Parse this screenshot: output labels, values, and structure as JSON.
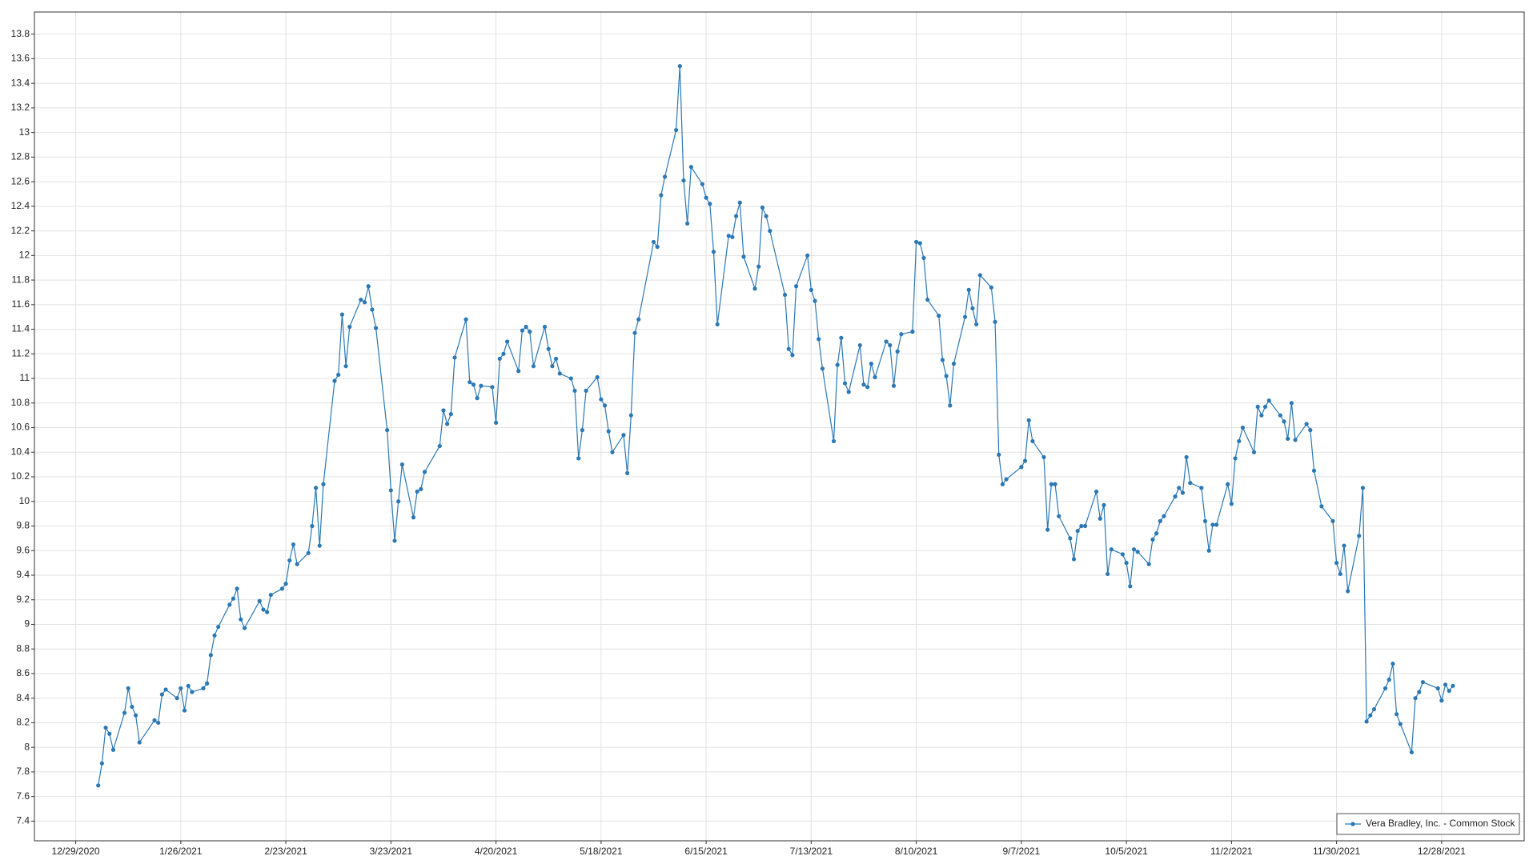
{
  "chart_data": {
    "type": "line",
    "series": [
      {
        "name": "Vera Bradley, Inc. - Common Stock",
        "color": "#2b78b4",
        "x": [
          "1/4/2021",
          "1/5/2021",
          "1/6/2021",
          "1/7/2021",
          "1/8/2021",
          "1/11/2021",
          "1/12/2021",
          "1/13/2021",
          "1/14/2021",
          "1/15/2021",
          "1/19/2021",
          "1/20/2021",
          "1/21/2021",
          "1/22/2021",
          "1/25/2021",
          "1/26/2021",
          "1/27/2021",
          "1/28/2021",
          "1/29/2021",
          "2/1/2021",
          "2/2/2021",
          "2/3/2021",
          "2/4/2021",
          "2/5/2021",
          "2/8/2021",
          "2/9/2021",
          "2/10/2021",
          "2/11/2021",
          "2/12/2021",
          "2/16/2021",
          "2/17/2021",
          "2/18/2021",
          "2/19/2021",
          "2/22/2021",
          "2/23/2021",
          "2/24/2021",
          "2/25/2021",
          "2/26/2021",
          "3/1/2021",
          "3/2/2021",
          "3/3/2021",
          "3/4/2021",
          "3/5/2021",
          "3/8/2021",
          "3/9/2021",
          "3/10/2021",
          "3/11/2021",
          "3/12/2021",
          "3/15/2021",
          "3/16/2021",
          "3/17/2021",
          "3/18/2021",
          "3/19/2021",
          "3/22/2021",
          "3/23/2021",
          "3/24/2021",
          "3/25/2021",
          "3/26/2021",
          "3/29/2021",
          "3/30/2021",
          "3/31/2021",
          "4/1/2021",
          "4/5/2021",
          "4/6/2021",
          "4/7/2021",
          "4/8/2021",
          "4/9/2021",
          "4/12/2021",
          "4/13/2021",
          "4/14/2021",
          "4/15/2021",
          "4/16/2021",
          "4/19/2021",
          "4/20/2021",
          "4/21/2021",
          "4/22/2021",
          "4/23/2021",
          "4/26/2021",
          "4/27/2021",
          "4/28/2021",
          "4/29/2021",
          "4/30/2021",
          "5/3/2021",
          "5/4/2021",
          "5/5/2021",
          "5/6/2021",
          "5/7/2021",
          "5/10/2021",
          "5/11/2021",
          "5/12/2021",
          "5/13/2021",
          "5/14/2021",
          "5/17/2021",
          "5/18/2021",
          "5/19/2021",
          "5/20/2021",
          "5/21/2021",
          "5/24/2021",
          "5/25/2021",
          "5/26/2021",
          "5/27/2021",
          "5/28/2021",
          "6/1/2021",
          "6/2/2021",
          "6/3/2021",
          "6/4/2021",
          "6/7/2021",
          "6/8/2021",
          "6/9/2021",
          "6/10/2021",
          "6/11/2021",
          "6/14/2021",
          "6/15/2021",
          "6/16/2021",
          "6/17/2021",
          "6/18/2021",
          "6/21/2021",
          "6/22/2021",
          "6/23/2021",
          "6/24/2021",
          "6/25/2021",
          "6/28/2021",
          "6/29/2021",
          "6/30/2021",
          "7/1/2021",
          "7/2/2021",
          "7/6/2021",
          "7/7/2021",
          "7/8/2021",
          "7/9/2021",
          "7/12/2021",
          "7/13/2021",
          "7/14/2021",
          "7/15/2021",
          "7/16/2021",
          "7/19/2021",
          "7/20/2021",
          "7/21/2021",
          "7/22/2021",
          "7/23/2021",
          "7/26/2021",
          "7/27/2021",
          "7/28/2021",
          "7/29/2021",
          "7/30/2021",
          "8/2/2021",
          "8/3/2021",
          "8/4/2021",
          "8/5/2021",
          "8/6/2021",
          "8/9/2021",
          "8/10/2021",
          "8/11/2021",
          "8/12/2021",
          "8/13/2021",
          "8/16/2021",
          "8/17/2021",
          "8/18/2021",
          "8/19/2021",
          "8/20/2021",
          "8/23/2021",
          "8/24/2021",
          "8/25/2021",
          "8/26/2021",
          "8/27/2021",
          "8/30/2021",
          "8/31/2021",
          "9/1/2021",
          "9/2/2021",
          "9/3/2021",
          "9/7/2021",
          "9/8/2021",
          "9/9/2021",
          "9/10/2021",
          "9/13/2021",
          "9/14/2021",
          "9/15/2021",
          "9/16/2021",
          "9/17/2021",
          "9/20/2021",
          "9/21/2021",
          "9/22/2021",
          "9/23/2021",
          "9/24/2021",
          "9/27/2021",
          "9/28/2021",
          "9/29/2021",
          "9/30/2021",
          "10/1/2021",
          "10/4/2021",
          "10/5/2021",
          "10/6/2021",
          "10/7/2021",
          "10/8/2021",
          "10/11/2021",
          "10/12/2021",
          "10/13/2021",
          "10/14/2021",
          "10/15/2021",
          "10/18/2021",
          "10/19/2021",
          "10/20/2021",
          "10/21/2021",
          "10/22/2021",
          "10/25/2021",
          "10/26/2021",
          "10/27/2021",
          "10/28/2021",
          "10/29/2021",
          "11/1/2021",
          "11/2/2021",
          "11/3/2021",
          "11/4/2021",
          "11/5/2021",
          "11/8/2021",
          "11/9/2021",
          "11/10/2021",
          "11/11/2021",
          "11/12/2021",
          "11/15/2021",
          "11/16/2021",
          "11/17/2021",
          "11/18/2021",
          "11/19/2021",
          "11/22/2021",
          "11/23/2021",
          "11/24/2021",
          "11/26/2021",
          "11/29/2021",
          "11/30/2021",
          "12/1/2021",
          "12/2/2021",
          "12/3/2021",
          "12/6/2021",
          "12/7/2021",
          "12/8/2021",
          "12/9/2021",
          "12/10/2021",
          "12/13/2021",
          "12/14/2021",
          "12/15/2021",
          "12/16/2021",
          "12/17/2021",
          "12/20/2021",
          "12/21/2021",
          "12/22/2021",
          "12/23/2021",
          "12/27/2021",
          "12/28/2021",
          "12/29/2021",
          "12/30/2021",
          "12/31/2021"
        ],
        "values": [
          7.69,
          7.87,
          8.16,
          8.11,
          7.98,
          8.28,
          8.48,
          8.33,
          8.26,
          8.04,
          8.22,
          8.2,
          8.43,
          8.47,
          8.4,
          8.48,
          8.3,
          8.5,
          8.45,
          8.48,
          8.52,
          8.75,
          8.91,
          8.98,
          9.16,
          9.21,
          9.29,
          9.04,
          8.97,
          9.19,
          9.12,
          9.1,
          9.24,
          9.29,
          9.33,
          9.52,
          9.65,
          9.49,
          9.58,
          9.8,
          10.11,
          9.64,
          10.14,
          10.98,
          11.03,
          11.52,
          11.1,
          11.42,
          11.64,
          11.62,
          11.75,
          11.56,
          11.41,
          10.58,
          10.09,
          9.68,
          10,
          10.3,
          9.87,
          10.08,
          10.1,
          10.24,
          10.45,
          10.74,
          10.63,
          10.71,
          11.17,
          11.48,
          10.97,
          10.95,
          10.84,
          10.94,
          10.93,
          10.64,
          11.16,
          11.2,
          11.3,
          11.06,
          11.39,
          11.42,
          11.38,
          11.1,
          11.42,
          11.24,
          11.1,
          11.16,
          11.04,
          11,
          10.9,
          10.35,
          10.58,
          10.9,
          11.01,
          10.83,
          10.78,
          10.57,
          10.4,
          10.54,
          10.23,
          10.7,
          11.37,
          11.48,
          12.11,
          12.07,
          12.49,
          12.64,
          13.02,
          13.54,
          12.61,
          12.26,
          12.72,
          12.58,
          12.47,
          12.42,
          12.03,
          11.44,
          12.16,
          12.15,
          12.32,
          12.43,
          11.99,
          11.73,
          11.91,
          12.39,
          12.32,
          12.2,
          11.68,
          11.24,
          11.19,
          11.75,
          12,
          11.72,
          11.63,
          11.32,
          11.08,
          10.49,
          11.11,
          11.33,
          10.96,
          10.89,
          11.27,
          10.95,
          10.93,
          11.12,
          11.01,
          11.3,
          11.27,
          10.94,
          11.22,
          11.36,
          11.38,
          12.11,
          12.1,
          11.98,
          11.64,
          11.51,
          11.15,
          11.02,
          10.78,
          11.12,
          11.5,
          11.72,
          11.57,
          11.44,
          11.84,
          11.74,
          11.46,
          10.38,
          10.14,
          10.18,
          10.28,
          10.33,
          10.66,
          10.49,
          10.36,
          9.77,
          10.14,
          10.14,
          9.88,
          9.7,
          9.53,
          9.76,
          9.8,
          9.8,
          10.08,
          9.86,
          9.97,
          9.41,
          9.61,
          9.57,
          9.5,
          9.31,
          9.61,
          9.59,
          9.49,
          9.69,
          9.74,
          9.84,
          9.88,
          10.04,
          10.11,
          10.07,
          10.36,
          10.15,
          10.11,
          9.84,
          9.6,
          9.81,
          9.81,
          10.14,
          9.98,
          10.35,
          10.49,
          10.6,
          10.4,
          10.77,
          10.7,
          10.77,
          10.82,
          10.7,
          10.65,
          10.51,
          10.8,
          10.5,
          10.63,
          10.58,
          10.25,
          9.96,
          9.84,
          9.5,
          9.41,
          9.64,
          9.27,
          9.72,
          10.11,
          8.21,
          8.26,
          8.31,
          8.48,
          8.55,
          8.68,
          8.27,
          8.19,
          7.96,
          8.4,
          8.45,
          8.53,
          8.48,
          8.38,
          8.51,
          8.46,
          8.5
        ]
      }
    ],
    "xlim": [
      "12/18/2020",
      "1/19/2022"
    ],
    "xticks": [
      "12/29/2020",
      "1/26/2021",
      "2/23/2021",
      "3/23/2021",
      "4/20/2021",
      "5/18/2021",
      "6/15/2021",
      "7/13/2021",
      "8/10/2021",
      "9/7/2021",
      "10/5/2021",
      "11/2/2021",
      "11/30/2021",
      "12/28/2021"
    ],
    "ylim": [
      7.24,
      13.98
    ],
    "yticks": [
      7.4,
      7.6,
      7.8,
      8,
      8.2,
      8.4,
      8.6,
      8.8,
      9,
      9.2,
      9.4,
      9.6,
      9.8,
      10,
      10.2,
      10.4,
      10.6,
      10.8,
      11,
      11.2,
      11.4,
      11.6,
      11.8,
      12,
      12.2,
      12.4,
      12.6,
      12.8,
      13,
      13.2,
      13.4,
      13.6,
      13.8
    ],
    "grid": true,
    "legend": "bottom-right"
  }
}
